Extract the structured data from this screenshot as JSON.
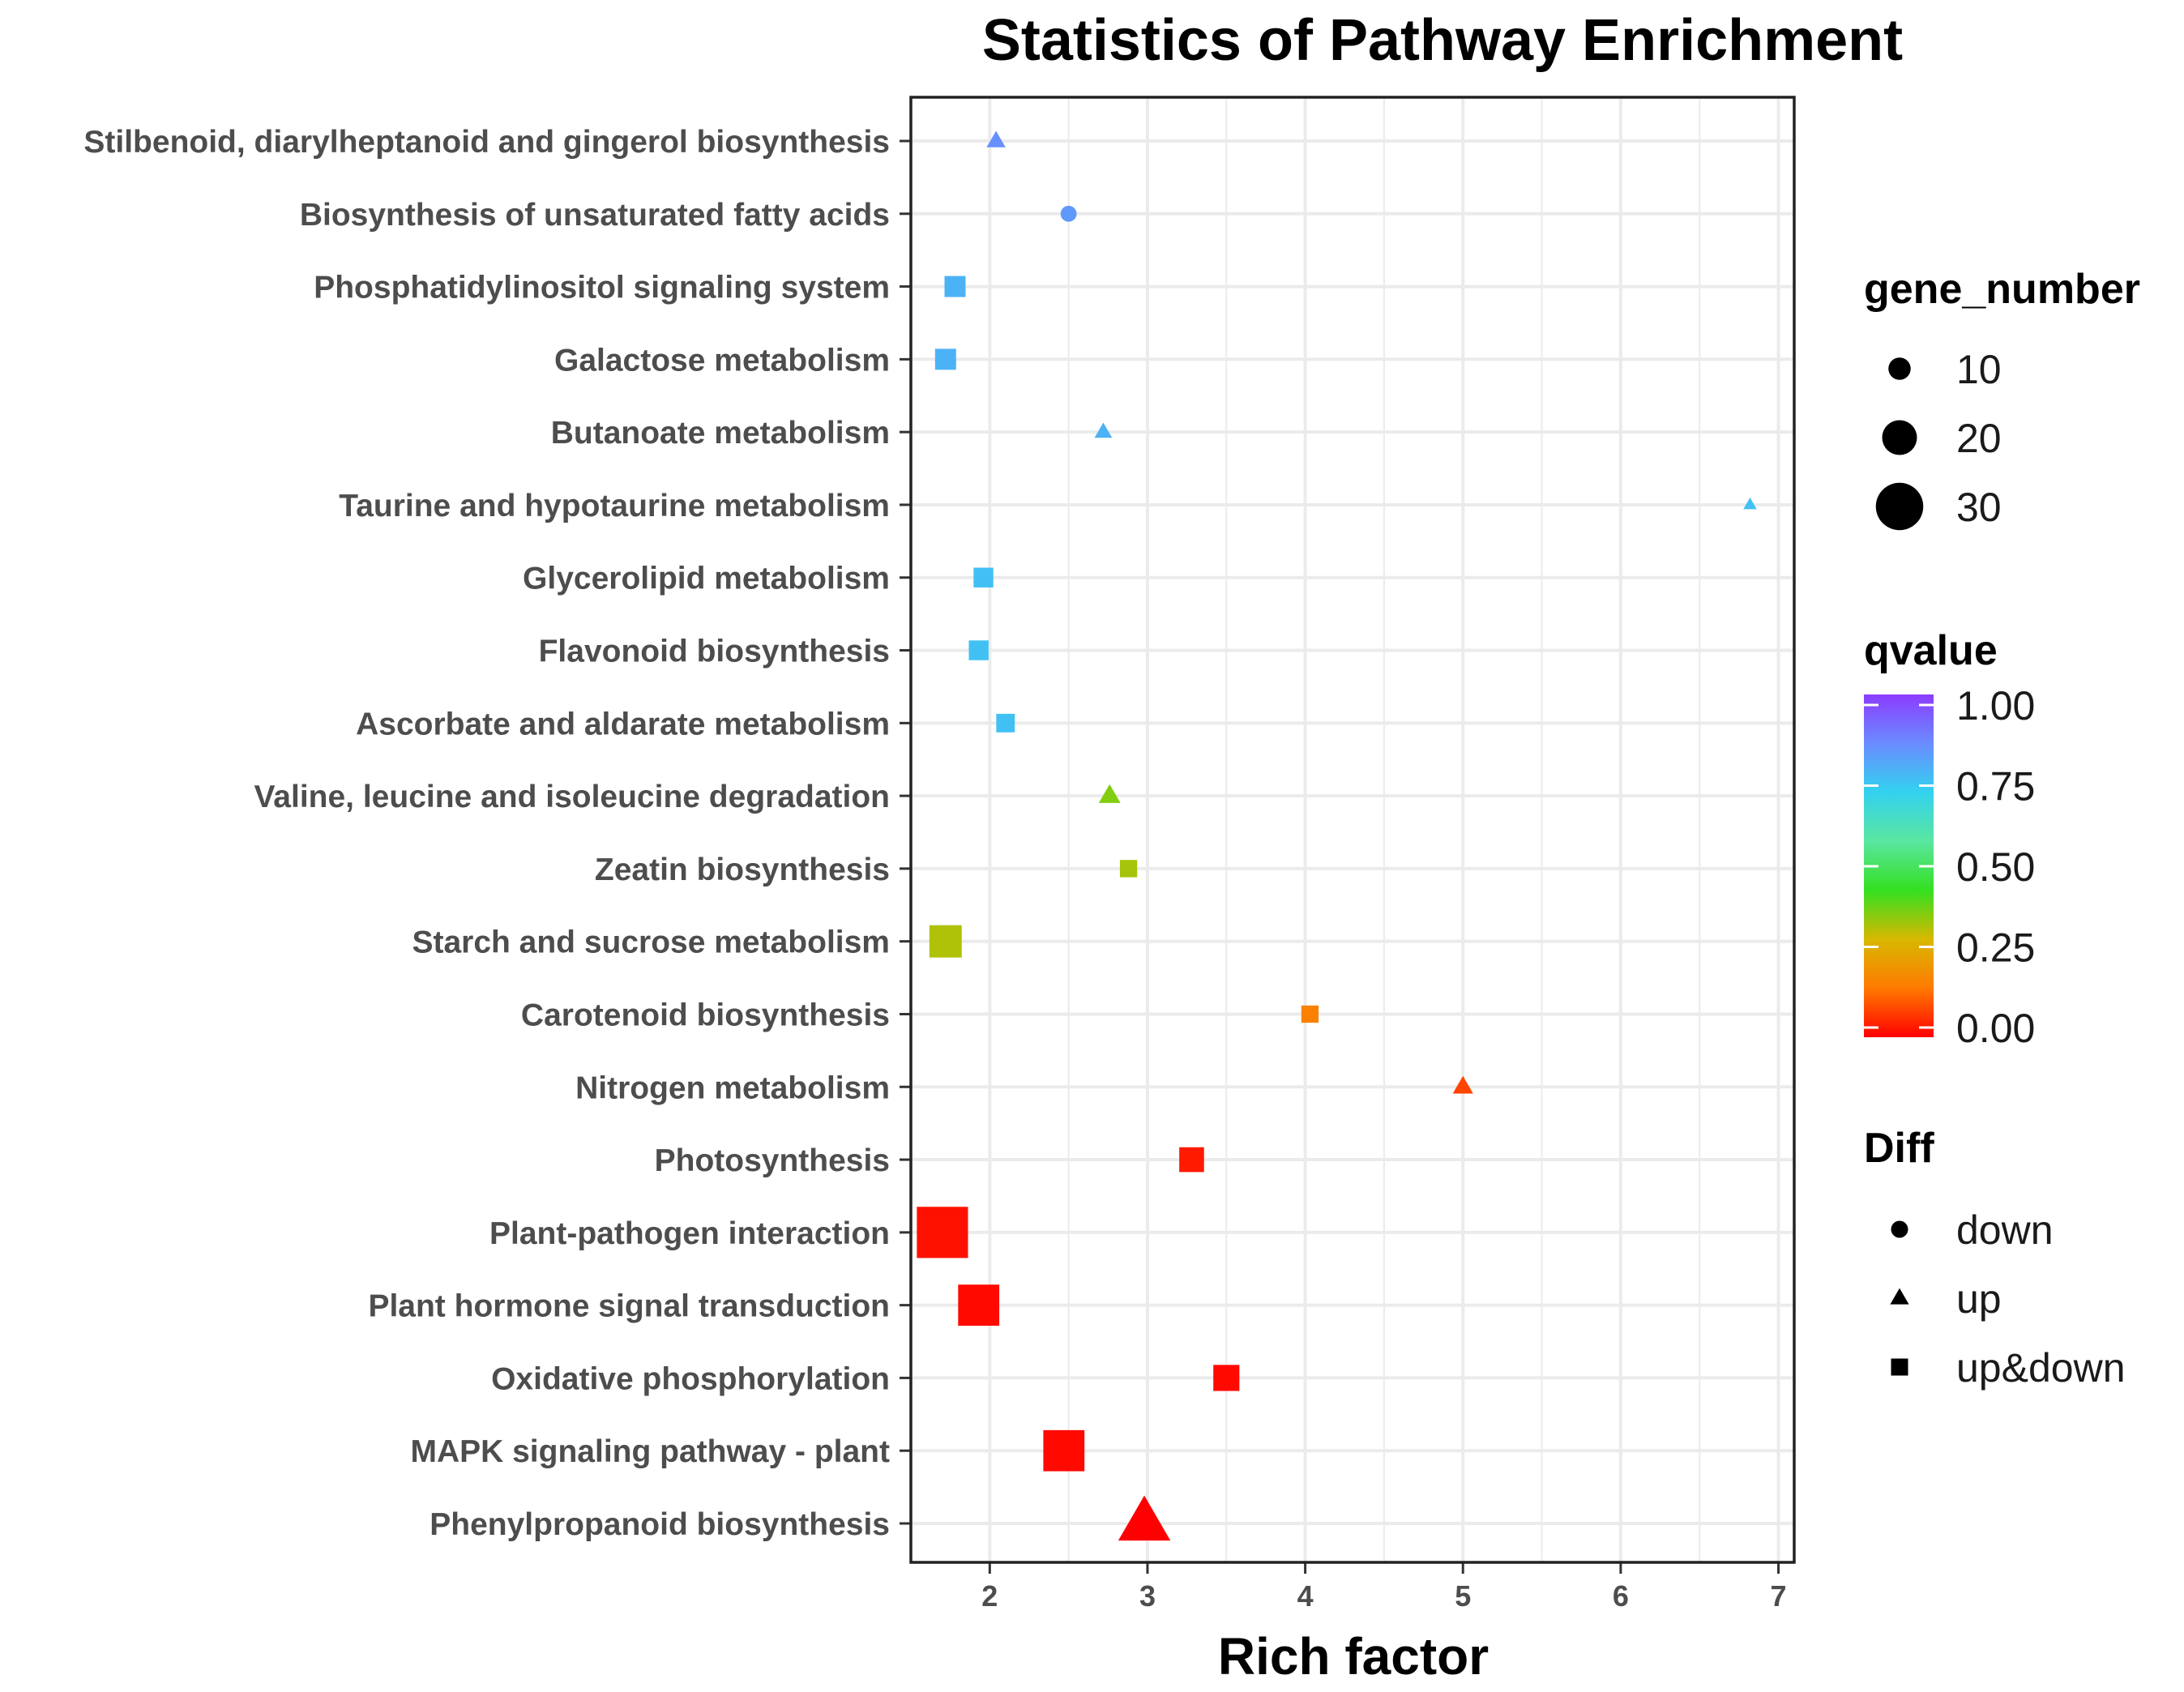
{
  "chart_data": {
    "type": "scatter",
    "title": "Statistics of Pathway Enrichment",
    "xlabel": "Rich factor",
    "ylabel": "",
    "xlim": [
      1.5,
      7.1
    ],
    "xticks": [
      2,
      3,
      4,
      5,
      6,
      7
    ],
    "grid": true,
    "categories": [
      "Stilbenoid, diarylheptanoid and gingerol biosynthesis",
      "Biosynthesis of unsaturated fatty acids",
      "Phosphatidylinositol signaling system",
      "Galactose metabolism",
      "Butanoate metabolism",
      "Taurine and hypotaurine metabolism",
      "Glycerolipid metabolism",
      "Flavonoid biosynthesis",
      "Ascorbate and aldarate metabolism",
      "Valine, leucine and isoleucine degradation",
      "Zeatin biosynthesis",
      "Starch and sucrose metabolism",
      "Carotenoid biosynthesis",
      "Nitrogen metabolism",
      "Photosynthesis",
      "Plant-pathogen interaction",
      "Plant hormone signal transduction",
      "Oxidative phosphorylation",
      "MAPK signaling pathway - plant",
      "Phenylpropanoid biosynthesis"
    ],
    "points": [
      {
        "pathway": "Stilbenoid, diarylheptanoid and gingerol biosynthesis",
        "rich_factor": 2.04,
        "gene_number": 6,
        "qvalue": 0.85,
        "diff": "up"
      },
      {
        "pathway": "Biosynthesis of unsaturated fatty acids",
        "rich_factor": 2.5,
        "gene_number": 5,
        "qvalue": 0.83,
        "diff": "down"
      },
      {
        "pathway": "Phosphatidylinositol signaling system",
        "rich_factor": 1.78,
        "gene_number": 9,
        "qvalue": 0.78,
        "diff": "up&down"
      },
      {
        "pathway": "Galactose metabolism",
        "rich_factor": 1.72,
        "gene_number": 9,
        "qvalue": 0.78,
        "diff": "up&down"
      },
      {
        "pathway": "Butanoate metabolism",
        "rich_factor": 2.72,
        "gene_number": 5,
        "qvalue": 0.78,
        "diff": "up"
      },
      {
        "pathway": "Taurine and hypotaurine metabolism",
        "rich_factor": 6.82,
        "gene_number": 2,
        "qvalue": 0.75,
        "diff": "up"
      },
      {
        "pathway": "Glycerolipid metabolism",
        "rich_factor": 1.96,
        "gene_number": 8,
        "qvalue": 0.75,
        "diff": "up&down"
      },
      {
        "pathway": "Flavonoid biosynthesis",
        "rich_factor": 1.93,
        "gene_number": 8,
        "qvalue": 0.75,
        "diff": "up&down"
      },
      {
        "pathway": "Ascorbate and aldarate metabolism",
        "rich_factor": 2.1,
        "gene_number": 7,
        "qvalue": 0.75,
        "diff": "up&down"
      },
      {
        "pathway": "Valine, leucine and isoleucine degradation",
        "rich_factor": 2.76,
        "gene_number": 8,
        "qvalue": 0.36,
        "diff": "up"
      },
      {
        "pathway": "Zeatin biosynthesis",
        "rich_factor": 2.88,
        "gene_number": 6,
        "qvalue": 0.33,
        "diff": "up&down"
      },
      {
        "pathway": "Starch and sucrose metabolism",
        "rich_factor": 1.72,
        "gene_number": 18,
        "qvalue": 0.32,
        "diff": "up&down"
      },
      {
        "pathway": "Carotenoid biosynthesis",
        "rich_factor": 4.03,
        "gene_number": 6,
        "qvalue": 0.16,
        "diff": "up&down"
      },
      {
        "pathway": "Nitrogen metabolism",
        "rich_factor": 5.0,
        "gene_number": 7,
        "qvalue": 0.08,
        "diff": "up"
      },
      {
        "pathway": "Photosynthesis",
        "rich_factor": 3.28,
        "gene_number": 12,
        "qvalue": 0.03,
        "diff": "up&down"
      },
      {
        "pathway": "Plant-pathogen interaction",
        "rich_factor": 1.7,
        "gene_number": 33,
        "qvalue": 0.02,
        "diff": "up&down"
      },
      {
        "pathway": "Plant hormone signal transduction",
        "rich_factor": 1.93,
        "gene_number": 25,
        "qvalue": 0.01,
        "diff": "up&down"
      },
      {
        "pathway": "Oxidative phosphorylation",
        "rich_factor": 3.5,
        "gene_number": 13,
        "qvalue": 0.01,
        "diff": "up&down"
      },
      {
        "pathway": "MAPK signaling pathway - plant",
        "rich_factor": 2.47,
        "gene_number": 25,
        "qvalue": 0.01,
        "diff": "up&down"
      },
      {
        "pathway": "Phenylpropanoid biosynthesis",
        "rich_factor": 2.98,
        "gene_number": 30,
        "qvalue": 0.0,
        "diff": "up"
      }
    ],
    "legends": {
      "gene_number": {
        "title": "gene_number",
        "values": [
          10,
          20,
          30
        ]
      },
      "qvalue": {
        "title": "qvalue",
        "ticks": [
          "1.00",
          "0.75",
          "0.50",
          "0.25",
          "0.00"
        ],
        "tick_values": [
          1.0,
          0.75,
          0.5,
          0.25,
          0.0
        ],
        "colors": [
          "#ff0000",
          "#ff7a00",
          "#d8b800",
          "#33e020",
          "#5ae6a0",
          "#33d2ef",
          "#6a8cff",
          "#8c3cff"
        ]
      },
      "diff": {
        "title": "Diff",
        "items": [
          "down",
          "up",
          "up&down"
        ]
      }
    }
  }
}
